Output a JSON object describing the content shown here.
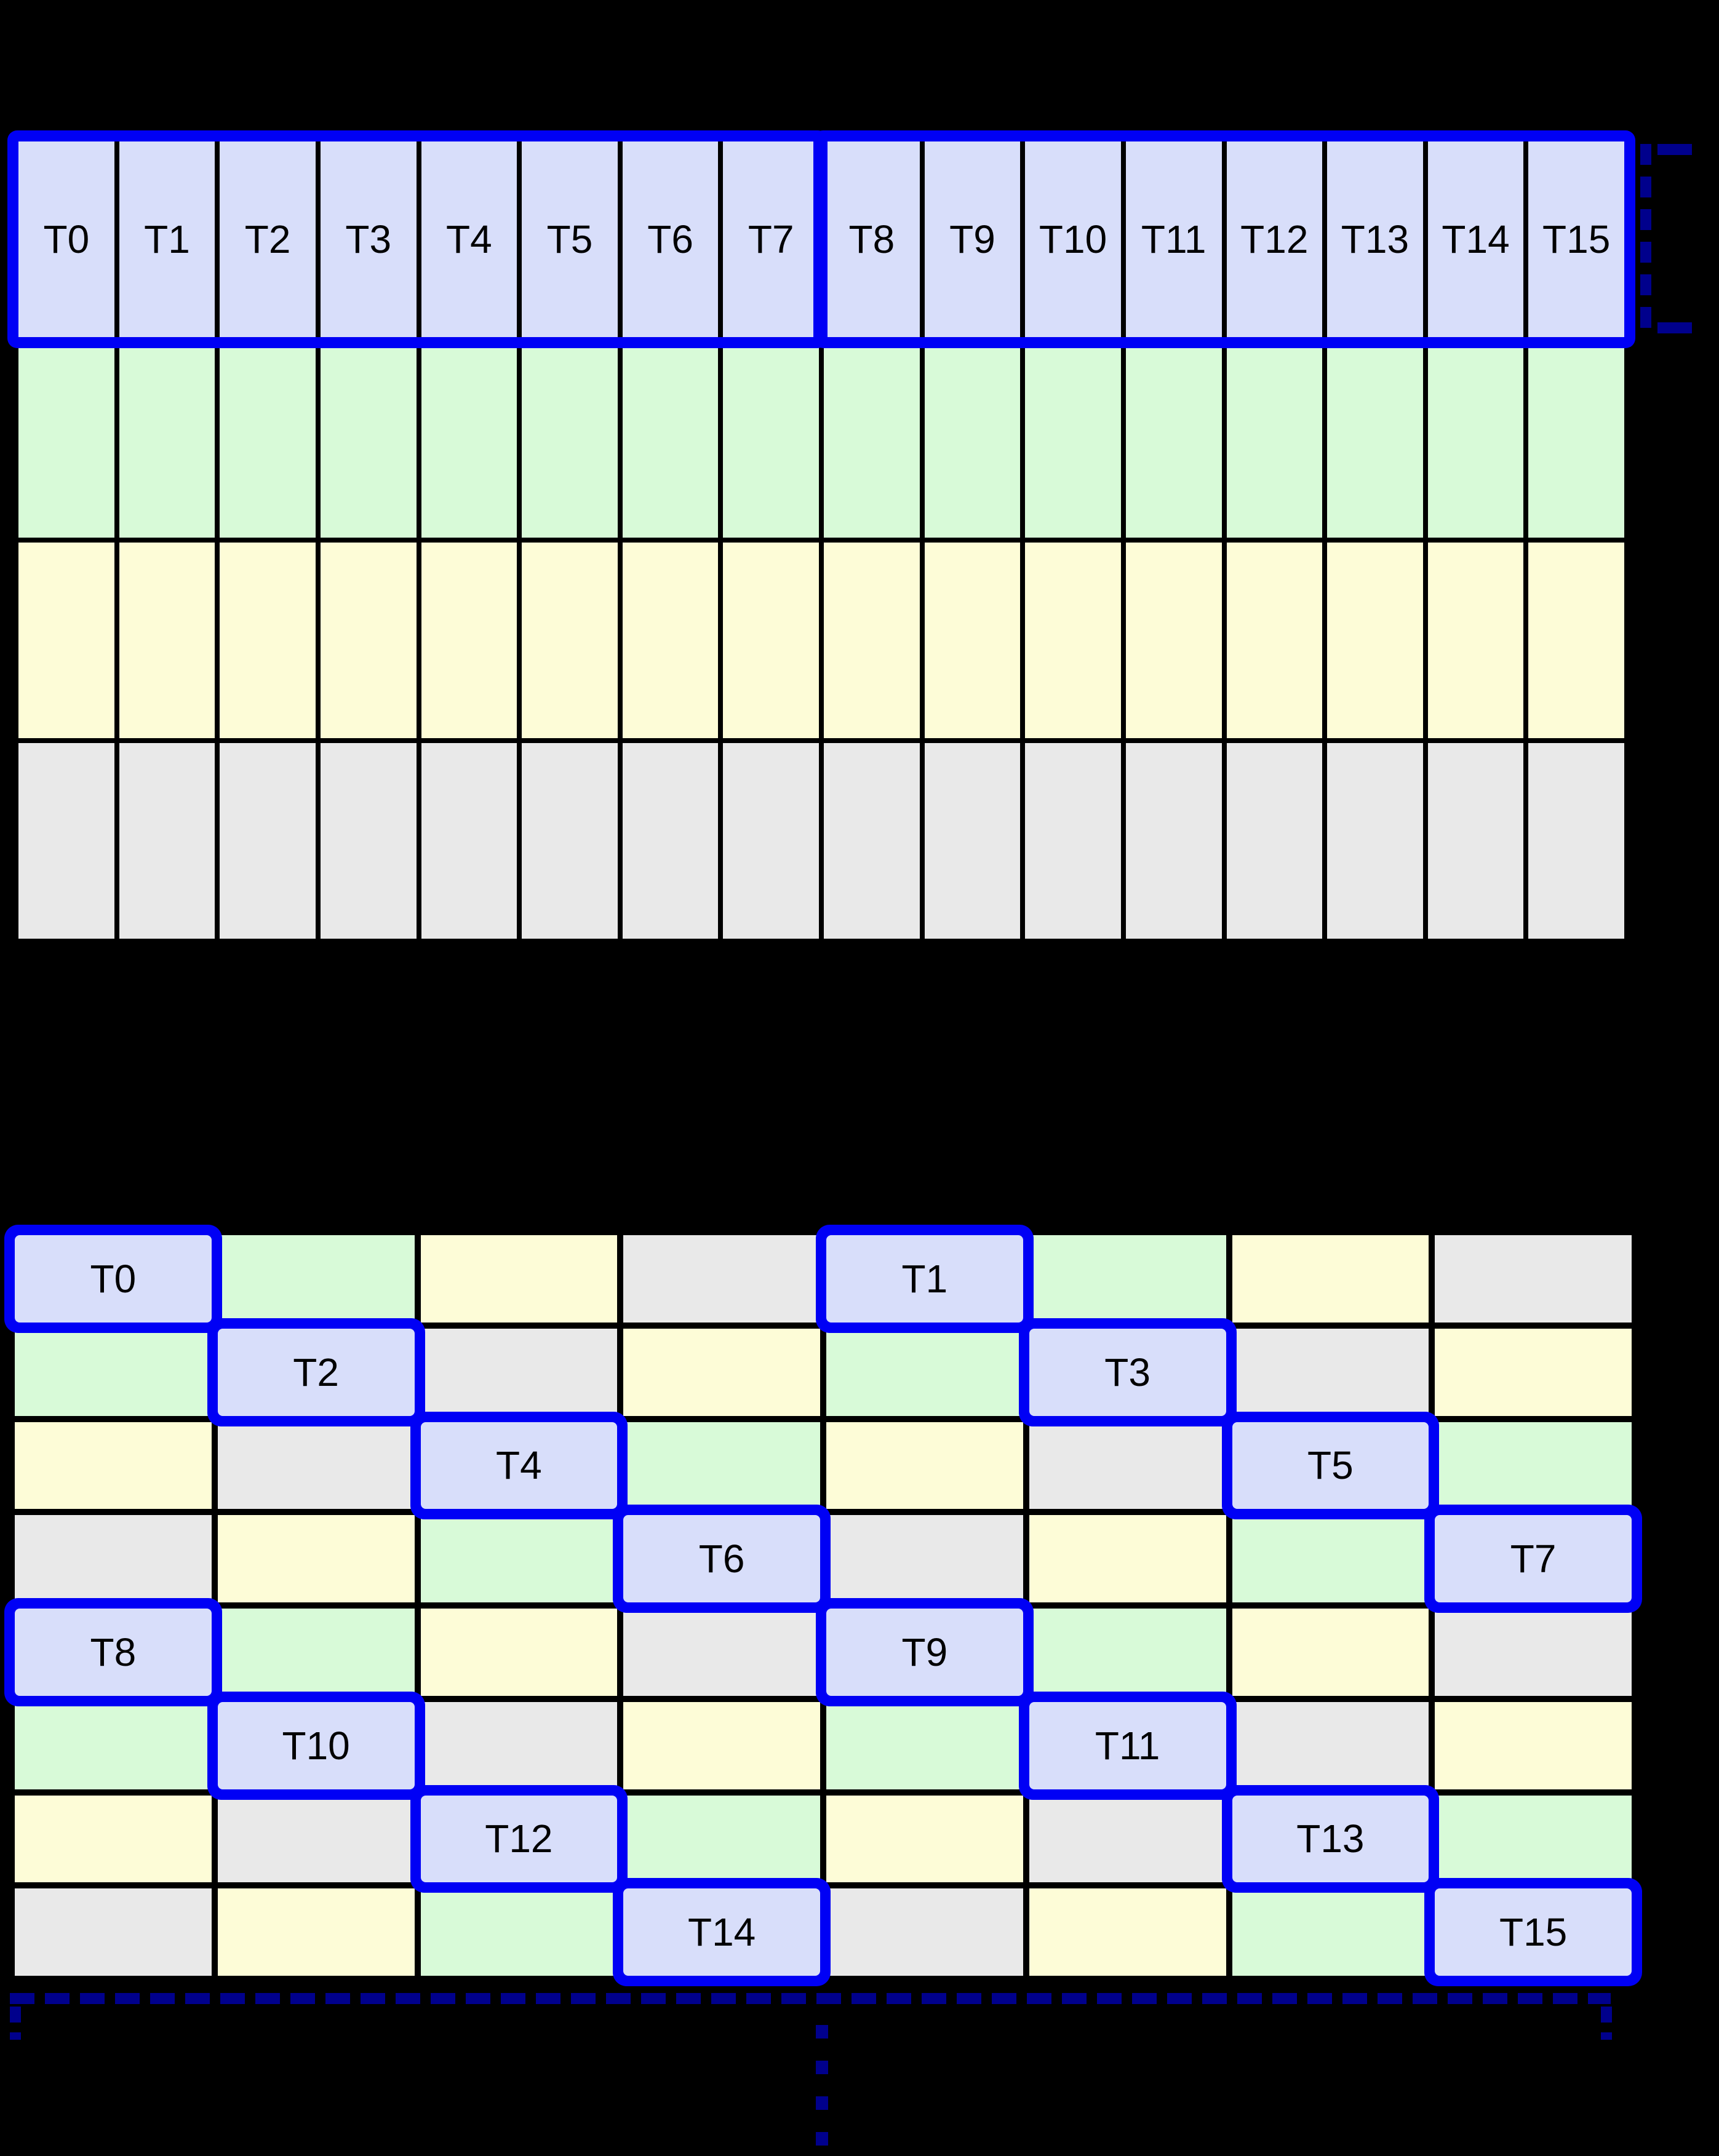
{
  "colors": {
    "blue": "#d8defa",
    "green": "#d8fad8",
    "yellow": "#fdfcd7",
    "gray": "#e9e9e9",
    "highlight_border": "#0000f5",
    "bracket": "#00008c",
    "gridline": "#000000",
    "background": "#000000",
    "label_text": "#000000"
  },
  "grid1": {
    "columns": 16,
    "rows": 4,
    "row_colors": [
      "blue",
      "green",
      "yellow",
      "gray"
    ],
    "thread_labels": [
      "T0",
      "T1",
      "T2",
      "T3",
      "T4",
      "T5",
      "T6",
      "T7",
      "T8",
      "T9",
      "T10",
      "T11",
      "T12",
      "T13",
      "T14",
      "T15"
    ],
    "warp_groups": [
      [
        0,
        7
      ],
      [
        8,
        15
      ]
    ]
  },
  "grid2": {
    "columns": 8,
    "rows": 8,
    "rows_spec": [
      {
        "colors": [
          "blue",
          "green",
          "yellow",
          "gray",
          "blue",
          "green",
          "yellow",
          "gray"
        ],
        "labels": [
          "T0",
          "",
          "",
          "",
          "T1",
          "",
          "",
          ""
        ]
      },
      {
        "colors": [
          "green",
          "blue",
          "gray",
          "yellow",
          "green",
          "blue",
          "gray",
          "yellow"
        ],
        "labels": [
          "",
          "T2",
          "",
          "",
          "",
          "T3",
          "",
          ""
        ]
      },
      {
        "colors": [
          "yellow",
          "gray",
          "blue",
          "green",
          "yellow",
          "gray",
          "blue",
          "green"
        ],
        "labels": [
          "",
          "",
          "T4",
          "",
          "",
          "",
          "T5",
          ""
        ]
      },
      {
        "colors": [
          "gray",
          "yellow",
          "green",
          "blue",
          "gray",
          "yellow",
          "green",
          "blue"
        ],
        "labels": [
          "",
          "",
          "",
          "T6",
          "",
          "",
          "",
          "T7"
        ]
      },
      {
        "colors": [
          "blue",
          "green",
          "yellow",
          "gray",
          "blue",
          "green",
          "yellow",
          "gray"
        ],
        "labels": [
          "T8",
          "",
          "",
          "",
          "T9",
          "",
          "",
          ""
        ]
      },
      {
        "colors": [
          "green",
          "blue",
          "gray",
          "yellow",
          "green",
          "blue",
          "gray",
          "yellow"
        ],
        "labels": [
          "",
          "T10",
          "",
          "",
          "",
          "T11",
          "",
          ""
        ]
      },
      {
        "colors": [
          "yellow",
          "gray",
          "blue",
          "green",
          "yellow",
          "gray",
          "blue",
          "green"
        ],
        "labels": [
          "",
          "",
          "T12",
          "",
          "",
          "",
          "T13",
          ""
        ]
      },
      {
        "colors": [
          "gray",
          "yellow",
          "green",
          "blue",
          "gray",
          "yellow",
          "green",
          "blue"
        ],
        "labels": [
          "",
          "",
          "",
          "T14",
          "",
          "",
          "",
          "T15"
        ]
      }
    ]
  }
}
